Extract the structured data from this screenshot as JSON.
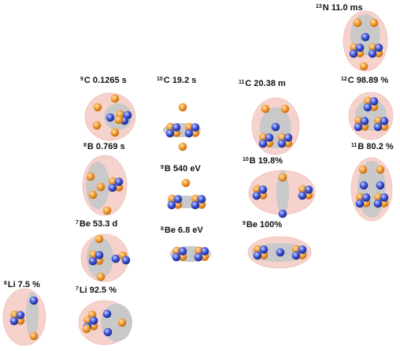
{
  "colors": {
    "proton": "#f29a2e",
    "neutron": "#3b52d6",
    "halo": "#f6d2cc",
    "core": "#c9c9c9"
  },
  "nuclides": [
    {
      "id": "n13",
      "mass": "13",
      "symbol": "N",
      "value": "11.0 ms"
    },
    {
      "id": "c9",
      "mass": "9",
      "symbol": "C",
      "value": "0.1265 s"
    },
    {
      "id": "c10",
      "mass": "10",
      "symbol": "C",
      "value": "19.2 s"
    },
    {
      "id": "c11",
      "mass": "11",
      "symbol": "C",
      "value": "20.38 m"
    },
    {
      "id": "c12",
      "mass": "12",
      "symbol": "C",
      "value": "98.89 %"
    },
    {
      "id": "b8",
      "mass": "8",
      "symbol": "B",
      "value": "0.769 s"
    },
    {
      "id": "b9",
      "mass": "9",
      "symbol": "B",
      "value": "540 eV"
    },
    {
      "id": "b10",
      "mass": "10",
      "symbol": "B",
      "value": "19.8%"
    },
    {
      "id": "b11",
      "mass": "11",
      "symbol": "B",
      "value": "80.2 %"
    },
    {
      "id": "be7",
      "mass": "7",
      "symbol": "Be",
      "value": "53.3 d"
    },
    {
      "id": "be8",
      "mass": "8",
      "symbol": "Be",
      "value": "6.8 eV"
    },
    {
      "id": "be9",
      "mass": "9",
      "symbol": "Be",
      "value": "100%"
    },
    {
      "id": "li6",
      "mass": "6",
      "symbol": "Li",
      "value": "7.5 %"
    },
    {
      "id": "li7",
      "mass": "7",
      "symbol": "Li",
      "value": "92.5 %"
    }
  ]
}
